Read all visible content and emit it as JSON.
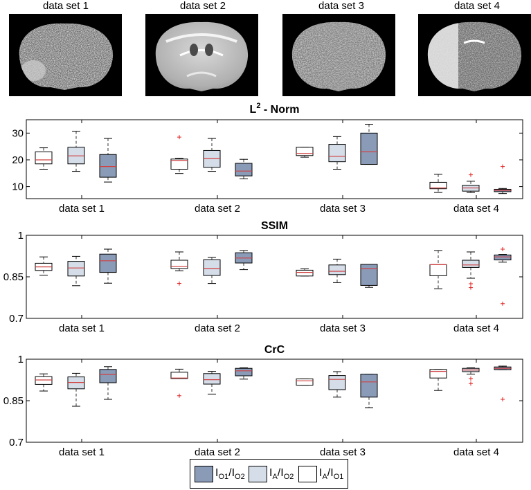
{
  "colors": {
    "io1_io2": "#8a9bb8",
    "ia_io2": "#d4dde8",
    "ia_io1": "#ffffff",
    "median": "#d04040",
    "outlier": "#e02020",
    "whisker": "#333333"
  },
  "images": [
    {
      "label": "data set 1",
      "icon": "brain-scan-noisy"
    },
    {
      "label": "data set 2",
      "icon": "brain-scan-clear"
    },
    {
      "label": "data set 3",
      "icon": "brain-scan-grainy"
    },
    {
      "label": "data set 4",
      "icon": "brain-scan-bright-left"
    }
  ],
  "legend": [
    {
      "key": "io1_io2",
      "main1": "I",
      "sub1": "O1",
      "main2": "I",
      "sub2": "O2"
    },
    {
      "key": "ia_io2",
      "main1": "I",
      "sub1": "A",
      "main2": "I",
      "sub2": "O2"
    },
    {
      "key": "ia_io1",
      "main1": "I",
      "sub1": "A",
      "main2": "I",
      "sub2": "O1"
    }
  ],
  "chart_data": [
    {
      "type": "box",
      "title_main": "L",
      "title_sup": "2",
      "title_rest": " - Norm",
      "categories": [
        "data set 1",
        "data set 2",
        "data set 3",
        "data set 4"
      ],
      "ylim": [
        5.5,
        35
      ],
      "yticks": [
        10,
        20,
        30
      ],
      "ytick_labels": [
        "10",
        "20",
        "30"
      ],
      "boxes": [
        {
          "group": 0,
          "series": "ia_io1",
          "wlo": 16.5,
          "q1": 18.5,
          "med": 20,
          "q3": 23,
          "whi": 24.5,
          "outliers": []
        },
        {
          "group": 0,
          "series": "ia_io2",
          "wlo": 15.7,
          "q1": 18.5,
          "med": 21.5,
          "q3": 24.7,
          "whi": 30.7,
          "outliers": []
        },
        {
          "group": 0,
          "series": "io1_io2",
          "wlo": 11.7,
          "q1": 13.5,
          "med": 17.5,
          "q3": 22,
          "whi": 28,
          "outliers": []
        },
        {
          "group": 1,
          "series": "ia_io1",
          "wlo": 14.9,
          "q1": 16.5,
          "med": 19.8,
          "q3": 20.3,
          "whi": 20.6,
          "outliers": [
            28.5
          ]
        },
        {
          "group": 1,
          "series": "ia_io2",
          "wlo": 15.7,
          "q1": 17.2,
          "med": 20.5,
          "q3": 23.5,
          "whi": 28,
          "outliers": []
        },
        {
          "group": 1,
          "series": "io1_io2",
          "wlo": 12.9,
          "q1": 14,
          "med": 15.8,
          "q3": 18.7,
          "whi": 20.2,
          "outliers": []
        },
        {
          "group": 2,
          "series": "ia_io1",
          "wlo": 21,
          "q1": 21.6,
          "med": 22.4,
          "q3": 24.7,
          "whi": 24.7,
          "outliers": []
        },
        {
          "group": 2,
          "series": "ia_io2",
          "wlo": 16.5,
          "q1": 19.3,
          "med": 21.3,
          "q3": 25.8,
          "whi": 28.7,
          "outliers": []
        },
        {
          "group": 2,
          "series": "io1_io2",
          "wlo": 18.3,
          "q1": 18.3,
          "med": 23,
          "q3": 30,
          "whi": 33.3,
          "outliers": []
        },
        {
          "group": 3,
          "series": "ia_io1",
          "wlo": 7.8,
          "q1": 9.2,
          "med": 9.5,
          "q3": 11.6,
          "whi": 14.6,
          "outliers": []
        },
        {
          "group": 3,
          "series": "ia_io2",
          "wlo": 7.8,
          "q1": 8.3,
          "med": 9.5,
          "q3": 10.5,
          "whi": 12,
          "outliers": [
            14.4
          ]
        },
        {
          "group": 3,
          "series": "io1_io2",
          "wlo": 7.4,
          "q1": 8.1,
          "med": 8.6,
          "q3": 9,
          "whi": 9.3,
          "outliers": [
            17.5
          ]
        }
      ]
    },
    {
      "type": "box",
      "title_main": "SSIM",
      "title_sup": "",
      "title_rest": "",
      "categories": [
        "data set 1",
        "data set 2",
        "data set 3",
        "data set 4"
      ],
      "ylim": [
        0.7,
        1
      ],
      "yticks": [
        0.7,
        0.85,
        1
      ],
      "ytick_labels": [
        "0.7",
        "0.85",
        "1"
      ],
      "boxes": [
        {
          "group": 0,
          "series": "ia_io1",
          "wlo": 0.856,
          "q1": 0.873,
          "med": 0.886,
          "q3": 0.899,
          "whi": 0.922,
          "outliers": []
        },
        {
          "group": 0,
          "series": "ia_io2",
          "wlo": 0.818,
          "q1": 0.853,
          "med": 0.882,
          "q3": 0.906,
          "whi": 0.924,
          "outliers": []
        },
        {
          "group": 0,
          "series": "io1_io2",
          "wlo": 0.827,
          "q1": 0.866,
          "med": 0.908,
          "q3": 0.932,
          "whi": 0.95,
          "outliers": []
        },
        {
          "group": 1,
          "series": "ia_io1",
          "wlo": 0.872,
          "q1": 0.88,
          "med": 0.887,
          "q3": 0.91,
          "whi": 0.94,
          "outliers": [
            0.826
          ]
        },
        {
          "group": 1,
          "series": "ia_io2",
          "wlo": 0.826,
          "q1": 0.855,
          "med": 0.88,
          "q3": 0.912,
          "whi": 0.92,
          "outliers": []
        },
        {
          "group": 1,
          "series": "io1_io2",
          "wlo": 0.876,
          "q1": 0.9,
          "med": 0.918,
          "q3": 0.937,
          "whi": 0.945,
          "outliers": []
        },
        {
          "group": 2,
          "series": "ia_io1",
          "wlo": 0.853,
          "q1": 0.853,
          "med": 0.866,
          "q3": 0.874,
          "whi": 0.879,
          "outliers": []
        },
        {
          "group": 2,
          "series": "ia_io2",
          "wlo": 0.829,
          "q1": 0.858,
          "med": 0.87,
          "q3": 0.893,
          "whi": 0.914,
          "outliers": []
        },
        {
          "group": 2,
          "series": "io1_io2",
          "wlo": 0.812,
          "q1": 0.819,
          "med": 0.879,
          "q3": 0.895,
          "whi": 0.895,
          "outliers": []
        },
        {
          "group": 3,
          "series": "ia_io1",
          "wlo": 0.807,
          "q1": 0.854,
          "med": 0.894,
          "q3": 0.894,
          "whi": 0.945,
          "outliers": []
        },
        {
          "group": 3,
          "series": "ia_io2",
          "wlo": 0.845,
          "q1": 0.884,
          "med": 0.893,
          "q3": 0.91,
          "whi": 0.94,
          "outliers": [
            0.811,
            0.825
          ]
        },
        {
          "group": 3,
          "series": "io1_io2",
          "wlo": 0.903,
          "q1": 0.911,
          "med": 0.922,
          "q3": 0.929,
          "whi": 0.931,
          "outliers": [
            0.95,
            0.753
          ]
        }
      ]
    },
    {
      "type": "box",
      "title_main": "CrC",
      "title_sup": "",
      "title_rest": "",
      "categories": [
        "data set 1",
        "data set 2",
        "data set 3",
        "data set 4"
      ],
      "ylim": [
        0.7,
        1
      ],
      "yticks": [
        0.7,
        0.85,
        1
      ],
      "ytick_labels": [
        "0.7",
        "0.85",
        "1"
      ],
      "boxes": [
        {
          "group": 0,
          "series": "ia_io1",
          "wlo": 0.885,
          "q1": 0.909,
          "med": 0.925,
          "q3": 0.937,
          "whi": 0.947,
          "outliers": []
        },
        {
          "group": 0,
          "series": "ia_io2",
          "wlo": 0.83,
          "q1": 0.893,
          "med": 0.916,
          "q3": 0.936,
          "whi": 0.949,
          "outliers": []
        },
        {
          "group": 0,
          "series": "io1_io2",
          "wlo": 0.855,
          "q1": 0.915,
          "med": 0.945,
          "q3": 0.963,
          "whi": 0.973,
          "outliers": []
        },
        {
          "group": 1,
          "series": "ia_io1",
          "wlo": 0.93,
          "q1": 0.93,
          "med": 0.932,
          "q3": 0.953,
          "whi": 0.964,
          "outliers": [
            0.868
          ]
        },
        {
          "group": 1,
          "series": "ia_io2",
          "wlo": 0.874,
          "q1": 0.91,
          "med": 0.926,
          "q3": 0.948,
          "whi": 0.956,
          "outliers": []
        },
        {
          "group": 1,
          "series": "io1_io2",
          "wlo": 0.928,
          "q1": 0.94,
          "med": 0.958,
          "q3": 0.967,
          "whi": 0.969,
          "outliers": []
        },
        {
          "group": 2,
          "series": "ia_io1",
          "wlo": 0.906,
          "q1": 0.906,
          "med": 0.922,
          "q3": 0.929,
          "whi": 0.929,
          "outliers": []
        },
        {
          "group": 2,
          "series": "ia_io2",
          "wlo": 0.863,
          "q1": 0.89,
          "med": 0.927,
          "q3": 0.941,
          "whi": 0.955,
          "outliers": []
        },
        {
          "group": 2,
          "series": "io1_io2",
          "wlo": 0.825,
          "q1": 0.863,
          "med": 0.918,
          "q3": 0.946,
          "whi": 0.946,
          "outliers": []
        },
        {
          "group": 3,
          "series": "ia_io1",
          "wlo": 0.887,
          "q1": 0.932,
          "med": 0.956,
          "q3": 0.963,
          "whi": 0.963,
          "outliers": []
        },
        {
          "group": 3,
          "series": "ia_io2",
          "wlo": 0.946,
          "q1": 0.955,
          "med": 0.961,
          "q3": 0.967,
          "whi": 0.969,
          "outliers": [
            0.912,
            0.93
          ]
        },
        {
          "group": 3,
          "series": "io1_io2",
          "wlo": 0.962,
          "q1": 0.962,
          "med": 0.967,
          "q3": 0.972,
          "whi": 0.975,
          "outliers": [
            0.855
          ]
        }
      ]
    }
  ]
}
